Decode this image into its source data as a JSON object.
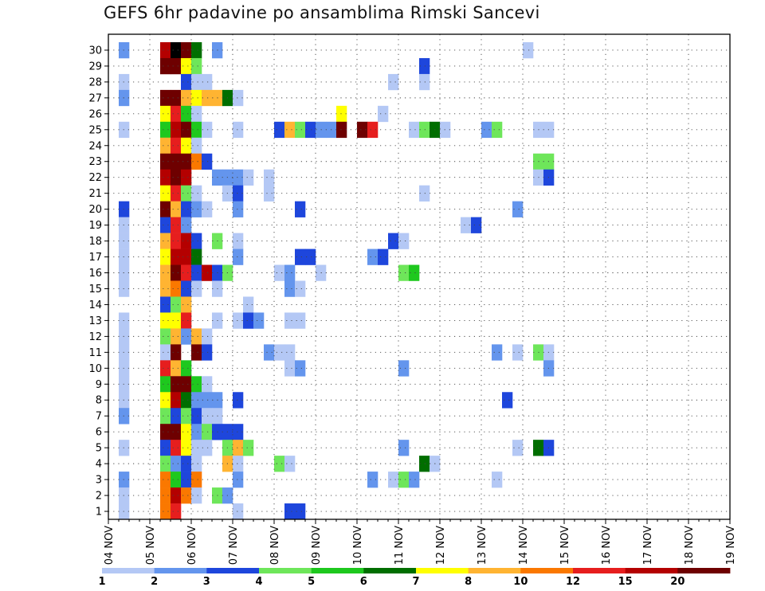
{
  "title": "GEFS 6hr padavine po ansamblima Rimski Sancevi",
  "chart_data": {
    "type": "heatmap",
    "title": "GEFS 6hr padavine po ansamblima Rimski Sancevi",
    "x_tick_labels": [
      "04 NOV",
      "05 NOV",
      "06 NOV",
      "07 NOV",
      "08 NOV",
      "09 NOV",
      "10 NOV",
      "11 NOV",
      "12 NOV",
      "13 NOV",
      "14 NOV",
      "15 NOV",
      "16 NOV",
      "17 NOV",
      "18 NOV",
      "19 NOV"
    ],
    "y_tick_labels": [
      "1",
      "2",
      "3",
      "4",
      "5",
      "6",
      "7",
      "8",
      "9",
      "10",
      "11",
      "12",
      "13",
      "14",
      "15",
      "16",
      "17",
      "18",
      "19",
      "20",
      "21",
      "22",
      "23",
      "24",
      "25",
      "26",
      "27",
      "28",
      "29",
      "30"
    ],
    "x_steps_per_day": 4,
    "y_range": [
      0,
      30
    ],
    "grid": true,
    "colorbar": {
      "position": "bottom",
      "labels": [
        "1",
        "2",
        "3",
        "4",
        "5",
        "6",
        "7",
        "8",
        "10",
        "12",
        "15",
        "20"
      ],
      "colors": [
        "#b4c8f5",
        "#6495ed",
        "#1e46dc",
        "#6ee65a",
        "#1ec81e",
        "#006e00",
        "#ffff00",
        "#ffb432",
        "#fa7800",
        "#e61e1e",
        "#b40000",
        "#6e0000"
      ]
    },
    "cells": [
      [
        30,
        1,
        1
      ],
      [
        30,
        5,
        10
      ],
      [
        30,
        6,
        12
      ],
      [
        30,
        7,
        11
      ],
      [
        30,
        8,
        5
      ],
      [
        30,
        10,
        1
      ],
      [
        30,
        40,
        0
      ],
      [
        29,
        5,
        11
      ],
      [
        29,
        6,
        11
      ],
      [
        29,
        7,
        6
      ],
      [
        29,
        8,
        3
      ],
      [
        29,
        30,
        2
      ],
      [
        28,
        1,
        0
      ],
      [
        28,
        7,
        2
      ],
      [
        28,
        8,
        0
      ],
      [
        28,
        9,
        0
      ],
      [
        28,
        27,
        0
      ],
      [
        28,
        30,
        0
      ],
      [
        27,
        1,
        1
      ],
      [
        27,
        5,
        11
      ],
      [
        27,
        6,
        11
      ],
      [
        27,
        7,
        7
      ],
      [
        27,
        8,
        6
      ],
      [
        27,
        9,
        7
      ],
      [
        27,
        10,
        7
      ],
      [
        27,
        11,
        5
      ],
      [
        27,
        12,
        0
      ],
      [
        26,
        5,
        6
      ],
      [
        26,
        6,
        9
      ],
      [
        26,
        7,
        4
      ],
      [
        26,
        8,
        0
      ],
      [
        26,
        22,
        6
      ],
      [
        26,
        26,
        0
      ],
      [
        25,
        1,
        0
      ],
      [
        25,
        5,
        4
      ],
      [
        25,
        6,
        10
      ],
      [
        25,
        7,
        11
      ],
      [
        25,
        8,
        4
      ],
      [
        25,
        9,
        0
      ],
      [
        25,
        12,
        0
      ],
      [
        25,
        16,
        2
      ],
      [
        25,
        17,
        7
      ],
      [
        25,
        18,
        3
      ],
      [
        25,
        19,
        2
      ],
      [
        25,
        20,
        1
      ],
      [
        25,
        21,
        1
      ],
      [
        25,
        22,
        11
      ],
      [
        25,
        24,
        11
      ],
      [
        25,
        25,
        9
      ],
      [
        25,
        29,
        0
      ],
      [
        25,
        30,
        3
      ],
      [
        25,
        31,
        5
      ],
      [
        25,
        32,
        0
      ],
      [
        25,
        36,
        1
      ],
      [
        25,
        37,
        3
      ],
      [
        25,
        41,
        0
      ],
      [
        25,
        42,
        0
      ],
      [
        24,
        5,
        7
      ],
      [
        24,
        6,
        9
      ],
      [
        24,
        7,
        6
      ],
      [
        24,
        8,
        0
      ],
      [
        23,
        5,
        11
      ],
      [
        23,
        6,
        11
      ],
      [
        23,
        7,
        11
      ],
      [
        23,
        8,
        8
      ],
      [
        23,
        9,
        2
      ],
      [
        23,
        41,
        3
      ],
      [
        23,
        42,
        3
      ],
      [
        22,
        5,
        10
      ],
      [
        22,
        6,
        11
      ],
      [
        22,
        7,
        10
      ],
      [
        22,
        10,
        1
      ],
      [
        22,
        11,
        1
      ],
      [
        22,
        12,
        1
      ],
      [
        22,
        13,
        0
      ],
      [
        22,
        15,
        0
      ],
      [
        22,
        41,
        0
      ],
      [
        22,
        42,
        2
      ],
      [
        21,
        5,
        6
      ],
      [
        21,
        6,
        9
      ],
      [
        21,
        7,
        3
      ],
      [
        21,
        8,
        0
      ],
      [
        21,
        11,
        0
      ],
      [
        21,
        12,
        2
      ],
      [
        21,
        15,
        0
      ],
      [
        21,
        30,
        0
      ],
      [
        20,
        1,
        2
      ],
      [
        20,
        5,
        11
      ],
      [
        20,
        6,
        7
      ],
      [
        20,
        7,
        2
      ],
      [
        20,
        8,
        1
      ],
      [
        20,
        9,
        0
      ],
      [
        20,
        12,
        1
      ],
      [
        20,
        18,
        2
      ],
      [
        20,
        39,
        1
      ],
      [
        19,
        1,
        0
      ],
      [
        19,
        5,
        2
      ],
      [
        19,
        6,
        9
      ],
      [
        19,
        7,
        1
      ],
      [
        19,
        34,
        0
      ],
      [
        19,
        35,
        2
      ],
      [
        18,
        1,
        0
      ],
      [
        18,
        5,
        7
      ],
      [
        18,
        6,
        9
      ],
      [
        18,
        7,
        10
      ],
      [
        18,
        8,
        2
      ],
      [
        18,
        10,
        3
      ],
      [
        18,
        12,
        0
      ],
      [
        18,
        27,
        2
      ],
      [
        18,
        28,
        0
      ],
      [
        17,
        1,
        0
      ],
      [
        17,
        5,
        6
      ],
      [
        17,
        6,
        10
      ],
      [
        17,
        7,
        10
      ],
      [
        17,
        8,
        5
      ],
      [
        17,
        12,
        1
      ],
      [
        17,
        18,
        2
      ],
      [
        17,
        19,
        2
      ],
      [
        17,
        25,
        1
      ],
      [
        17,
        26,
        2
      ],
      [
        16,
        1,
        0
      ],
      [
        16,
        5,
        7
      ],
      [
        16,
        6,
        11
      ],
      [
        16,
        7,
        9
      ],
      [
        16,
        8,
        2
      ],
      [
        16,
        9,
        10
      ],
      [
        16,
        10,
        2
      ],
      [
        16,
        11,
        3
      ],
      [
        16,
        16,
        0
      ],
      [
        16,
        17,
        1
      ],
      [
        16,
        20,
        0
      ],
      [
        16,
        28,
        3
      ],
      [
        16,
        29,
        4
      ],
      [
        15,
        1,
        0
      ],
      [
        15,
        5,
        7
      ],
      [
        15,
        6,
        8
      ],
      [
        15,
        7,
        2
      ],
      [
        15,
        8,
        0
      ],
      [
        15,
        10,
        0
      ],
      [
        15,
        17,
        1
      ],
      [
        15,
        18,
        0
      ],
      [
        14,
        5,
        2
      ],
      [
        14,
        6,
        3
      ],
      [
        14,
        7,
        7
      ],
      [
        14,
        13,
        0
      ],
      [
        13,
        1,
        0
      ],
      [
        13,
        5,
        6
      ],
      [
        13,
        6,
        6
      ],
      [
        13,
        7,
        9
      ],
      [
        13,
        10,
        0
      ],
      [
        13,
        12,
        0
      ],
      [
        13,
        13,
        2
      ],
      [
        13,
        14,
        1
      ],
      [
        13,
        17,
        0
      ],
      [
        13,
        18,
        0
      ],
      [
        12,
        1,
        0
      ],
      [
        12,
        5,
        3
      ],
      [
        12,
        6,
        7
      ],
      [
        12,
        7,
        1
      ],
      [
        12,
        8,
        7
      ],
      [
        12,
        9,
        0
      ],
      [
        11,
        1,
        0
      ],
      [
        11,
        5,
        0
      ],
      [
        11,
        6,
        11
      ],
      [
        11,
        8,
        11
      ],
      [
        11,
        9,
        2
      ],
      [
        11,
        15,
        1
      ],
      [
        11,
        16,
        0
      ],
      [
        11,
        17,
        0
      ],
      [
        11,
        37,
        1
      ],
      [
        11,
        39,
        0
      ],
      [
        11,
        41,
        3
      ],
      [
        11,
        42,
        0
      ],
      [
        10,
        1,
        0
      ],
      [
        10,
        5,
        9
      ],
      [
        10,
        6,
        7
      ],
      [
        10,
        7,
        4
      ],
      [
        10,
        17,
        0
      ],
      [
        10,
        18,
        1
      ],
      [
        10,
        28,
        1
      ],
      [
        10,
        42,
        1
      ],
      [
        9,
        1,
        0
      ],
      [
        9,
        5,
        4
      ],
      [
        9,
        6,
        11
      ],
      [
        9,
        7,
        11
      ],
      [
        9,
        8,
        4
      ],
      [
        9,
        9,
        0
      ],
      [
        8,
        1,
        0
      ],
      [
        8,
        5,
        6
      ],
      [
        8,
        6,
        10
      ],
      [
        8,
        7,
        5
      ],
      [
        8,
        8,
        1
      ],
      [
        8,
        9,
        1
      ],
      [
        8,
        10,
        1
      ],
      [
        8,
        12,
        2
      ],
      [
        8,
        38,
        2
      ],
      [
        7,
        1,
        1
      ],
      [
        7,
        5,
        3
      ],
      [
        7,
        6,
        2
      ],
      [
        7,
        7,
        3
      ],
      [
        7,
        8,
        2
      ],
      [
        7,
        9,
        0
      ],
      [
        7,
        10,
        0
      ],
      [
        6,
        5,
        11
      ],
      [
        6,
        6,
        11
      ],
      [
        6,
        7,
        6
      ],
      [
        6,
        8,
        1
      ],
      [
        6,
        9,
        3
      ],
      [
        6,
        10,
        2
      ],
      [
        6,
        11,
        2
      ],
      [
        6,
        12,
        2
      ],
      [
        5,
        1,
        0
      ],
      [
        5,
        5,
        2
      ],
      [
        5,
        6,
        9
      ],
      [
        5,
        7,
        6
      ],
      [
        5,
        8,
        0
      ],
      [
        5,
        9,
        0
      ],
      [
        5,
        11,
        3
      ],
      [
        5,
        12,
        7
      ],
      [
        5,
        13,
        3
      ],
      [
        5,
        28,
        1
      ],
      [
        5,
        39,
        0
      ],
      [
        5,
        41,
        5
      ],
      [
        5,
        42,
        2
      ],
      [
        4,
        5,
        3
      ],
      [
        4,
        6,
        1
      ],
      [
        4,
        7,
        2
      ],
      [
        4,
        8,
        0
      ],
      [
        4,
        11,
        7
      ],
      [
        4,
        12,
        0
      ],
      [
        4,
        16,
        3
      ],
      [
        4,
        17,
        0
      ],
      [
        4,
        30,
        5
      ],
      [
        4,
        31,
        0
      ],
      [
        3,
        1,
        1
      ],
      [
        3,
        5,
        8
      ],
      [
        3,
        6,
        4
      ],
      [
        3,
        7,
        2
      ],
      [
        3,
        8,
        8
      ],
      [
        3,
        12,
        1
      ],
      [
        3,
        25,
        1
      ],
      [
        3,
        27,
        0
      ],
      [
        3,
        28,
        3
      ],
      [
        3,
        29,
        1
      ],
      [
        3,
        37,
        0
      ],
      [
        2,
        1,
        0
      ],
      [
        2,
        5,
        8
      ],
      [
        2,
        6,
        10
      ],
      [
        2,
        7,
        8
      ],
      [
        2,
        8,
        0
      ],
      [
        2,
        10,
        3
      ],
      [
        2,
        11,
        1
      ],
      [
        1,
        1,
        0
      ],
      [
        1,
        12,
        0
      ],
      [
        1,
        17,
        2
      ],
      [
        1,
        18,
        2
      ],
      [
        1,
        5,
        8
      ],
      [
        1,
        6,
        9
      ]
    ]
  }
}
